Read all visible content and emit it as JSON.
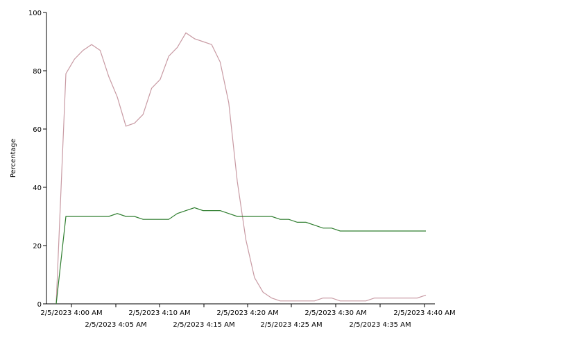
{
  "chart_data": {
    "type": "line",
    "title": "",
    "xlabel": "",
    "ylabel": "Percentage",
    "ylim": [
      0,
      100
    ],
    "yticks": [
      0,
      20,
      40,
      60,
      80,
      100
    ],
    "xticks": [
      {
        "t": 4.0,
        "label": "2/5/2023 4:00 AM"
      },
      {
        "t": 5.0,
        "label": "2/5/2023 4:05 AM"
      },
      {
        "t": 10.0,
        "label": "2/5/2023 4:10 AM"
      },
      {
        "t": 15.0,
        "label": "2/5/2023 4:15 AM"
      },
      {
        "t": 20.0,
        "label": "2/5/2023 4:20 AM"
      },
      {
        "t": 25.0,
        "label": "2/5/2023 4:25 AM"
      },
      {
        "t": 30.0,
        "label": "2/5/2023 4:30 AM"
      },
      {
        "t": 35.0,
        "label": "2/5/2023 4:35 AM"
      },
      {
        "t": 40.0,
        "label": "2/5/2023 4:40 AM"
      }
    ],
    "xlim": [
      3.0,
      40.2
    ],
    "grid": false,
    "series": [
      {
        "color": "#c89aa3",
        "points": [
          [
            3.5,
            0
          ],
          [
            4.0,
            79
          ],
          [
            4.5,
            84
          ],
          [
            5.0,
            87
          ],
          [
            5.5,
            89
          ],
          [
            6.0,
            87
          ],
          [
            6.5,
            78
          ],
          [
            7.0,
            71
          ],
          [
            7.5,
            61
          ],
          [
            8.0,
            62
          ],
          [
            8.5,
            65
          ],
          [
            9.0,
            74
          ],
          [
            9.5,
            77
          ],
          [
            10.0,
            85
          ],
          [
            10.5,
            88
          ],
          [
            11.0,
            93
          ],
          [
            11.5,
            91
          ],
          [
            12.0,
            90
          ],
          [
            12.5,
            89
          ],
          [
            13.0,
            83
          ],
          [
            13.5,
            69
          ],
          [
            14.0,
            42
          ],
          [
            14.5,
            22
          ],
          [
            15.0,
            9
          ],
          [
            15.5,
            4
          ],
          [
            16.0,
            2
          ],
          [
            16.5,
            1
          ],
          [
            17.0,
            1
          ],
          [
            17.5,
            1
          ],
          [
            18.0,
            1
          ],
          [
            18.5,
            1
          ],
          [
            19.0,
            2
          ],
          [
            19.5,
            2
          ],
          [
            20.0,
            1
          ],
          [
            20.5,
            1
          ],
          [
            21.0,
            1
          ],
          [
            21.5,
            1
          ],
          [
            22.0,
            2
          ],
          [
            22.5,
            2
          ],
          [
            23.0,
            2
          ],
          [
            23.5,
            2
          ],
          [
            24.0,
            2
          ],
          [
            24.5,
            2
          ],
          [
            25.0,
            3
          ]
        ]
      },
      {
        "color": "#2e7d2e",
        "points": [
          [
            3.5,
            0
          ],
          [
            4.0,
            30
          ],
          [
            4.5,
            30
          ],
          [
            5.0,
            30
          ],
          [
            5.5,
            30
          ],
          [
            6.0,
            30
          ],
          [
            6.5,
            30
          ],
          [
            7.0,
            31
          ],
          [
            7.5,
            30
          ],
          [
            8.0,
            30
          ],
          [
            8.5,
            29
          ],
          [
            9.0,
            29
          ],
          [
            9.5,
            29
          ],
          [
            10.0,
            29
          ],
          [
            10.5,
            31
          ],
          [
            11.0,
            32
          ],
          [
            11.5,
            33
          ],
          [
            12.0,
            32
          ],
          [
            12.5,
            32
          ],
          [
            13.0,
            32
          ],
          [
            13.5,
            31
          ],
          [
            14.0,
            30
          ],
          [
            14.5,
            30
          ],
          [
            15.0,
            30
          ],
          [
            15.5,
            30
          ],
          [
            16.0,
            30
          ],
          [
            16.5,
            29
          ],
          [
            17.0,
            29
          ],
          [
            17.5,
            28
          ],
          [
            18.0,
            28
          ],
          [
            18.5,
            27
          ],
          [
            19.0,
            26
          ],
          [
            19.5,
            26
          ],
          [
            20.0,
            25
          ],
          [
            20.5,
            25
          ],
          [
            21.0,
            25
          ],
          [
            21.5,
            25
          ],
          [
            22.0,
            25
          ],
          [
            22.5,
            25
          ],
          [
            23.0,
            25
          ],
          [
            23.5,
            25
          ],
          [
            24.0,
            25
          ],
          [
            24.5,
            25
          ],
          [
            25.0,
            25
          ]
        ]
      }
    ]
  }
}
